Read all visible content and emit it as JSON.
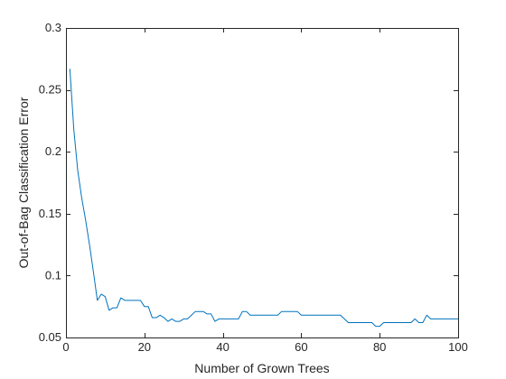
{
  "chart_data": {
    "type": "line",
    "title": "",
    "xlabel": "Number of Grown Trees",
    "ylabel": "Out-of-Bag Classification Error",
    "xlim": [
      0,
      100
    ],
    "ylim": [
      0.05,
      0.3
    ],
    "x_ticks": [
      0,
      20,
      40,
      60,
      80,
      100
    ],
    "x_tick_labels": [
      "0",
      "20",
      "40",
      "60",
      "80",
      "100"
    ],
    "y_ticks": [
      0.05,
      0.1,
      0.15,
      0.2,
      0.25,
      0.3
    ],
    "y_tick_labels": [
      "0.05",
      "0.1",
      "0.15",
      "0.2",
      "0.25",
      "0.3"
    ],
    "grid": false,
    "box": true,
    "colors": {
      "line": "#0072bd",
      "axes": "#262626"
    },
    "series": [
      {
        "x": [
          1,
          2,
          3,
          4,
          5,
          6,
          7,
          8,
          9,
          10,
          11,
          12,
          13,
          14,
          15,
          16,
          17,
          18,
          19,
          20,
          21,
          22,
          23,
          24,
          25,
          26,
          27,
          28,
          29,
          30,
          31,
          32,
          33,
          34,
          35,
          36,
          37,
          38,
          39,
          40,
          41,
          42,
          43,
          44,
          45,
          46,
          47,
          48,
          49,
          50,
          51,
          52,
          53,
          54,
          55,
          56,
          57,
          58,
          59,
          60,
          61,
          62,
          63,
          64,
          65,
          66,
          67,
          68,
          69,
          70,
          71,
          72,
          73,
          74,
          75,
          76,
          77,
          78,
          79,
          80,
          81,
          82,
          83,
          84,
          85,
          86,
          87,
          88,
          89,
          90,
          91,
          92,
          93,
          94,
          95,
          96,
          97,
          98,
          99,
          100
        ],
        "values": [
          0.267,
          0.218,
          0.185,
          0.163,
          0.145,
          0.125,
          0.103,
          0.08,
          0.085,
          0.083,
          0.072,
          0.074,
          0.074,
          0.082,
          0.08,
          0.08,
          0.08,
          0.08,
          0.08,
          0.075,
          0.075,
          0.066,
          0.066,
          0.068,
          0.066,
          0.063,
          0.065,
          0.063,
          0.063,
          0.065,
          0.065,
          0.068,
          0.071,
          0.071,
          0.071,
          0.069,
          0.069,
          0.063,
          0.065,
          0.065,
          0.065,
          0.065,
          0.065,
          0.065,
          0.071,
          0.071,
          0.068,
          0.068,
          0.068,
          0.068,
          0.068,
          0.068,
          0.068,
          0.068,
          0.071,
          0.071,
          0.071,
          0.071,
          0.071,
          0.068,
          0.068,
          0.068,
          0.068,
          0.068,
          0.068,
          0.068,
          0.068,
          0.068,
          0.068,
          0.068,
          0.065,
          0.062,
          0.062,
          0.062,
          0.062,
          0.062,
          0.062,
          0.062,
          0.059,
          0.059,
          0.062,
          0.062,
          0.062,
          0.062,
          0.062,
          0.062,
          0.062,
          0.062,
          0.065,
          0.062,
          0.062,
          0.068,
          0.065,
          0.065,
          0.065,
          0.065,
          0.065,
          0.065,
          0.065,
          0.065
        ]
      }
    ]
  }
}
